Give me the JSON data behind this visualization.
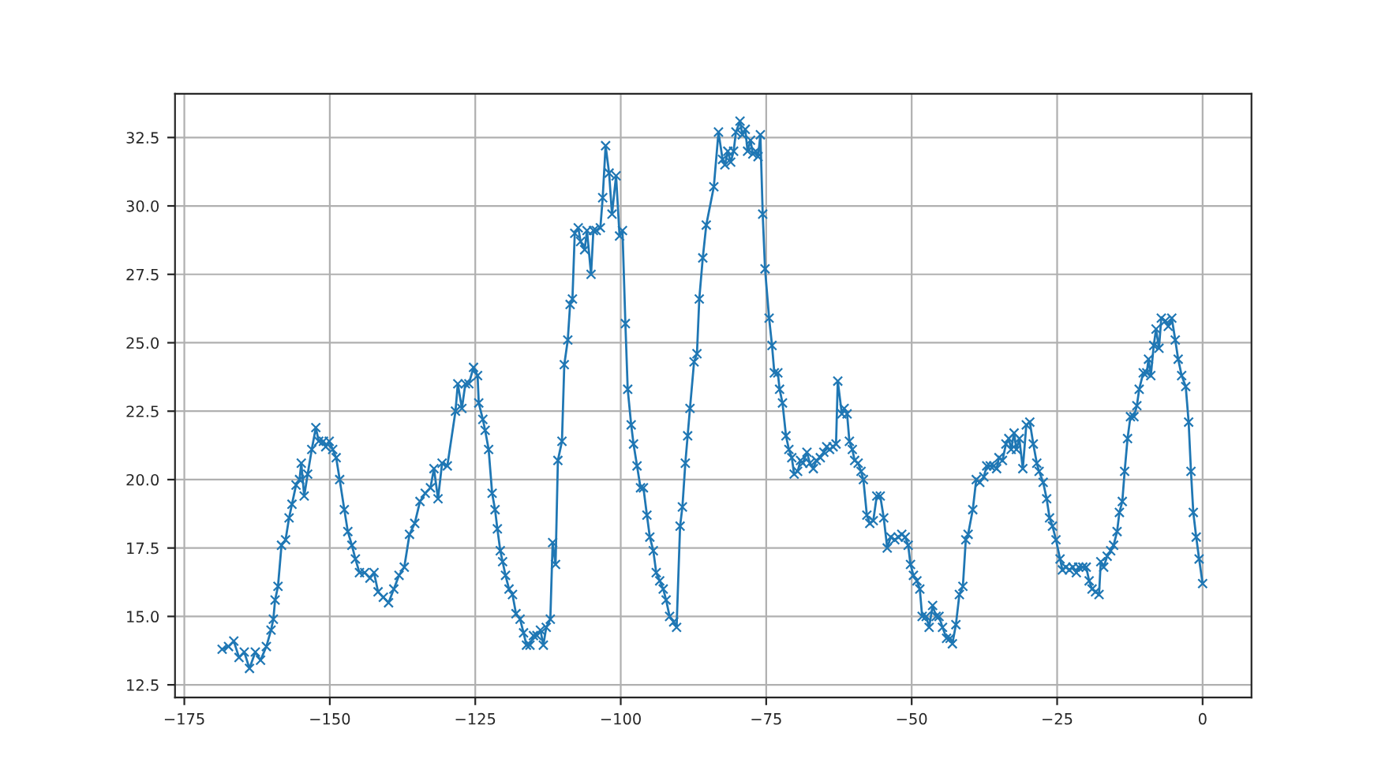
{
  "chart_data": {
    "type": "line",
    "marker": "cross",
    "line_style": "solid",
    "grid": true,
    "xlim": [
      -176.6,
      8.4
    ],
    "ylim": [
      12.04,
      34.1
    ],
    "xticks": [
      {
        "value": -175,
        "label": "−175"
      },
      {
        "value": -150,
        "label": "−150"
      },
      {
        "value": -125,
        "label": "−125"
      },
      {
        "value": -100,
        "label": "−100"
      },
      {
        "value": -75,
        "label": "−75"
      },
      {
        "value": -50,
        "label": "−50"
      },
      {
        "value": -25,
        "label": "−25"
      },
      {
        "value": 0,
        "label": "0"
      }
    ],
    "yticks": [
      {
        "value": 12.5,
        "label": "12.5"
      },
      {
        "value": 15,
        "label": "15.0"
      },
      {
        "value": 17.5,
        "label": "17.5"
      },
      {
        "value": 20,
        "label": "20.0"
      },
      {
        "value": 22.5,
        "label": "22.5"
      },
      {
        "value": 25,
        "label": "25.0"
      },
      {
        "value": 27.5,
        "label": "27.5"
      },
      {
        "value": 30,
        "label": "30.0"
      },
      {
        "value": 32.5,
        "label": "32.5"
      }
    ],
    "series": [
      {
        "color": "#1f77b4",
        "x": [
          -168.5,
          -167.4,
          -166.5,
          -165.6,
          -164.7,
          -163.8,
          -162.8,
          -161.9,
          -160.9,
          -160.1,
          -159.7,
          -159.4,
          -158.9,
          -158.3,
          -157.6,
          -157.0,
          -156.5,
          -155.8,
          -155.2,
          -154.9,
          -154.4,
          -153.8,
          -153.1,
          -152.4,
          -151.9,
          -151.1,
          -150.7,
          -150.1,
          -149.5,
          -148.9,
          -148.3,
          -147.5,
          -146.9,
          -146.2,
          -145.6,
          -144.9,
          -144.0,
          -143.1,
          -142.4,
          -141.7,
          -140.8,
          -139.9,
          -139.0,
          -138.1,
          -137.2,
          -136.3,
          -135.4,
          -134.5,
          -133.6,
          -132.7,
          -132.1,
          -131.4,
          -130.7,
          -129.8,
          -128.4,
          -128.0,
          -127.3,
          -126.7,
          -126.1,
          -125.3,
          -124.6,
          -124.4,
          -123.7,
          -123.3,
          -122.7,
          -122.1,
          -121.6,
          -121.2,
          -120.7,
          -120.3,
          -119.8,
          -119.2,
          -118.6,
          -118.0,
          -117.3,
          -116.7,
          -116.2,
          -115.6,
          -115.0,
          -114.4,
          -113.8,
          -113.3,
          -112.8,
          -112.1,
          -111.7,
          -111.2,
          -110.8,
          -110.1,
          -109.7,
          -109.1,
          -108.7,
          -108.3,
          -107.9,
          -107.3,
          -106.9,
          -106.2,
          -105.8,
          -105.1,
          -104.7,
          -104.2,
          -103.5,
          -103.1,
          -102.6,
          -102.0,
          -101.5,
          -100.8,
          -100.2,
          -99.7,
          -99.2,
          -98.8,
          -98.2,
          -97.8,
          -97.2,
          -96.6,
          -96.1,
          -95.5,
          -95.0,
          -94.4,
          -93.9,
          -93.3,
          -92.7,
          -92.2,
          -91.6,
          -90.9,
          -90.4,
          -89.8,
          -89.4,
          -88.9,
          -88.5,
          -88.1,
          -87.4,
          -86.9,
          -86.5,
          -85.9,
          -85.3,
          -84.0,
          -83.2,
          -82.5,
          -82.1,
          -81.6,
          -81.1,
          -80.6,
          -80.2,
          -79.5,
          -79.1,
          -78.6,
          -78.2,
          -77.7,
          -77.3,
          -76.8,
          -76.4,
          -76.0,
          -75.6,
          -75.2,
          -74.5,
          -74.0,
          -73.6,
          -73.0,
          -72.7,
          -72.2,
          -71.6,
          -71.1,
          -70.6,
          -70.2,
          -69.6,
          -69.1,
          -68.7,
          -68.0,
          -67.5,
          -66.9,
          -66.4,
          -65.7,
          -65.1,
          -64.6,
          -64.1,
          -63.5,
          -63.0,
          -62.7,
          -62.0,
          -61.6,
          -61.1,
          -60.7,
          -60.2,
          -59.8,
          -59.2,
          -58.7,
          -58.3,
          -57.7,
          -57.2,
          -56.6,
          -56.0,
          -55.4,
          -54.8,
          -54.2,
          -53.6,
          -52.9,
          -52.3,
          -51.7,
          -51.1,
          -50.6,
          -50.2,
          -49.7,
          -49.1,
          -48.6,
          -48.2,
          -47.5,
          -47.0,
          -46.4,
          -45.8,
          -45.3,
          -44.7,
          -44.0,
          -43.4,
          -43.0,
          -42.4,
          -41.8,
          -41.2,
          -40.7,
          -40.3,
          -39.5,
          -38.9,
          -38.3,
          -37.6,
          -37.1,
          -36.5,
          -35.9,
          -35.4,
          -35.0,
          -34.4,
          -33.8,
          -33.3,
          -32.9,
          -32.4,
          -32.0,
          -31.5,
          -30.9,
          -30.3,
          -29.7,
          -29.1,
          -28.5,
          -28.1,
          -27.4,
          -26.8,
          -26.3,
          -25.8,
          -25.2,
          -24.5,
          -24.1,
          -23.5,
          -22.9,
          -22.3,
          -21.7,
          -21.3,
          -20.6,
          -20.0,
          -19.5,
          -19.0,
          -18.4,
          -17.8,
          -17.5,
          -17.0,
          -16.4,
          -15.8,
          -15.3,
          -14.7,
          -14.3,
          -13.8,
          -13.4,
          -12.9,
          -12.4,
          -11.8,
          -11.3,
          -10.9,
          -10.2,
          -9.6,
          -9.3,
          -8.9,
          -8.4,
          -8.0,
          -7.5,
          -7.1,
          -6.4,
          -5.9,
          -5.3,
          -4.7,
          -4.2,
          -3.6,
          -2.9,
          -2.4,
          -2.0,
          -1.6,
          -1.1,
          -0.6,
          0.0
        ],
        "values": [
          13.8,
          13.9,
          14.1,
          13.5,
          13.7,
          13.1,
          13.7,
          13.4,
          13.9,
          14.5,
          14.9,
          15.6,
          16.1,
          17.6,
          17.8,
          18.6,
          19.1,
          19.8,
          20.0,
          20.6,
          19.4,
          20.2,
          21.1,
          21.9,
          21.4,
          21.4,
          21.2,
          21.4,
          21.1,
          20.8,
          20.0,
          18.9,
          18.1,
          17.6,
          17.1,
          16.6,
          16.6,
          16.4,
          16.6,
          15.9,
          15.7,
          15.5,
          16.0,
          16.5,
          16.8,
          18.0,
          18.4,
          19.2,
          19.5,
          19.7,
          20.4,
          19.3,
          20.6,
          20.5,
          22.5,
          23.5,
          22.6,
          23.5,
          23.5,
          24.1,
          23.8,
          22.8,
          22.2,
          21.8,
          21.1,
          19.5,
          18.9,
          18.2,
          17.4,
          17.0,
          16.5,
          16.0,
          15.8,
          15.1,
          14.9,
          14.4,
          13.95,
          13.95,
          14.3,
          14.3,
          14.5,
          13.95,
          14.6,
          14.9,
          17.7,
          16.9,
          20.7,
          21.4,
          24.2,
          25.1,
          26.4,
          26.6,
          29.0,
          29.2,
          28.7,
          28.4,
          29.1,
          27.5,
          29.1,
          29.1,
          29.2,
          30.3,
          32.2,
          31.2,
          29.7,
          31.1,
          28.9,
          29.1,
          25.7,
          23.3,
          22.0,
          21.3,
          20.5,
          19.7,
          19.7,
          18.7,
          17.9,
          17.4,
          16.6,
          16.3,
          16.0,
          15.6,
          15.0,
          14.8,
          14.6,
          18.3,
          19.0,
          20.6,
          21.6,
          22.6,
          24.3,
          24.6,
          26.6,
          28.1,
          29.3,
          30.7,
          32.7,
          31.7,
          31.5,
          32.0,
          31.6,
          32.0,
          32.7,
          33.1,
          32.6,
          32.8,
          32.0,
          32.4,
          31.9,
          32.0,
          31.8,
          32.6,
          29.7,
          27.7,
          25.9,
          24.9,
          23.9,
          23.9,
          23.3,
          22.8,
          21.6,
          21.1,
          20.8,
          20.2,
          20.3,
          20.7,
          20.6,
          21.0,
          20.6,
          20.4,
          20.7,
          20.8,
          21.0,
          21.2,
          21.1,
          21.2,
          21.3,
          23.6,
          22.4,
          22.6,
          22.4,
          21.4,
          21.1,
          20.7,
          20.6,
          20.3,
          20.0,
          18.7,
          18.4,
          18.5,
          19.4,
          19.4,
          18.6,
          17.5,
          17.9,
          17.8,
          17.9,
          18.0,
          17.9,
          17.6,
          16.9,
          16.5,
          16.3,
          16.0,
          15.0,
          15.0,
          14.6,
          15.4,
          15.0,
          15.0,
          14.6,
          14.2,
          14.2,
          14.0,
          14.7,
          15.8,
          16.1,
          17.8,
          18.0,
          18.9,
          20.0,
          19.9,
          20.1,
          20.5,
          20.5,
          20.5,
          20.4,
          20.8,
          20.7,
          21.3,
          21.5,
          21.1,
          21.7,
          21.1,
          21.5,
          20.4,
          22.0,
          22.1,
          21.3,
          20.6,
          20.3,
          19.9,
          19.3,
          18.6,
          18.3,
          17.8,
          17.1,
          16.7,
          16.8,
          16.7,
          16.8,
          16.6,
          16.8,
          16.8,
          16.8,
          16.3,
          16.0,
          15.9,
          15.8,
          17.0,
          16.8,
          17.2,
          17.4,
          17.6,
          18.1,
          18.8,
          19.2,
          20.3,
          21.5,
          22.3,
          22.3,
          22.7,
          23.3,
          23.9,
          23.9,
          24.4,
          23.8,
          24.9,
          25.5,
          24.8,
          25.9,
          25.8,
          25.6,
          25.9,
          25.1,
          24.4,
          23.8,
          23.4,
          22.1,
          20.3,
          18.8,
          17.9,
          17.1,
          16.2
        ]
      }
    ]
  }
}
